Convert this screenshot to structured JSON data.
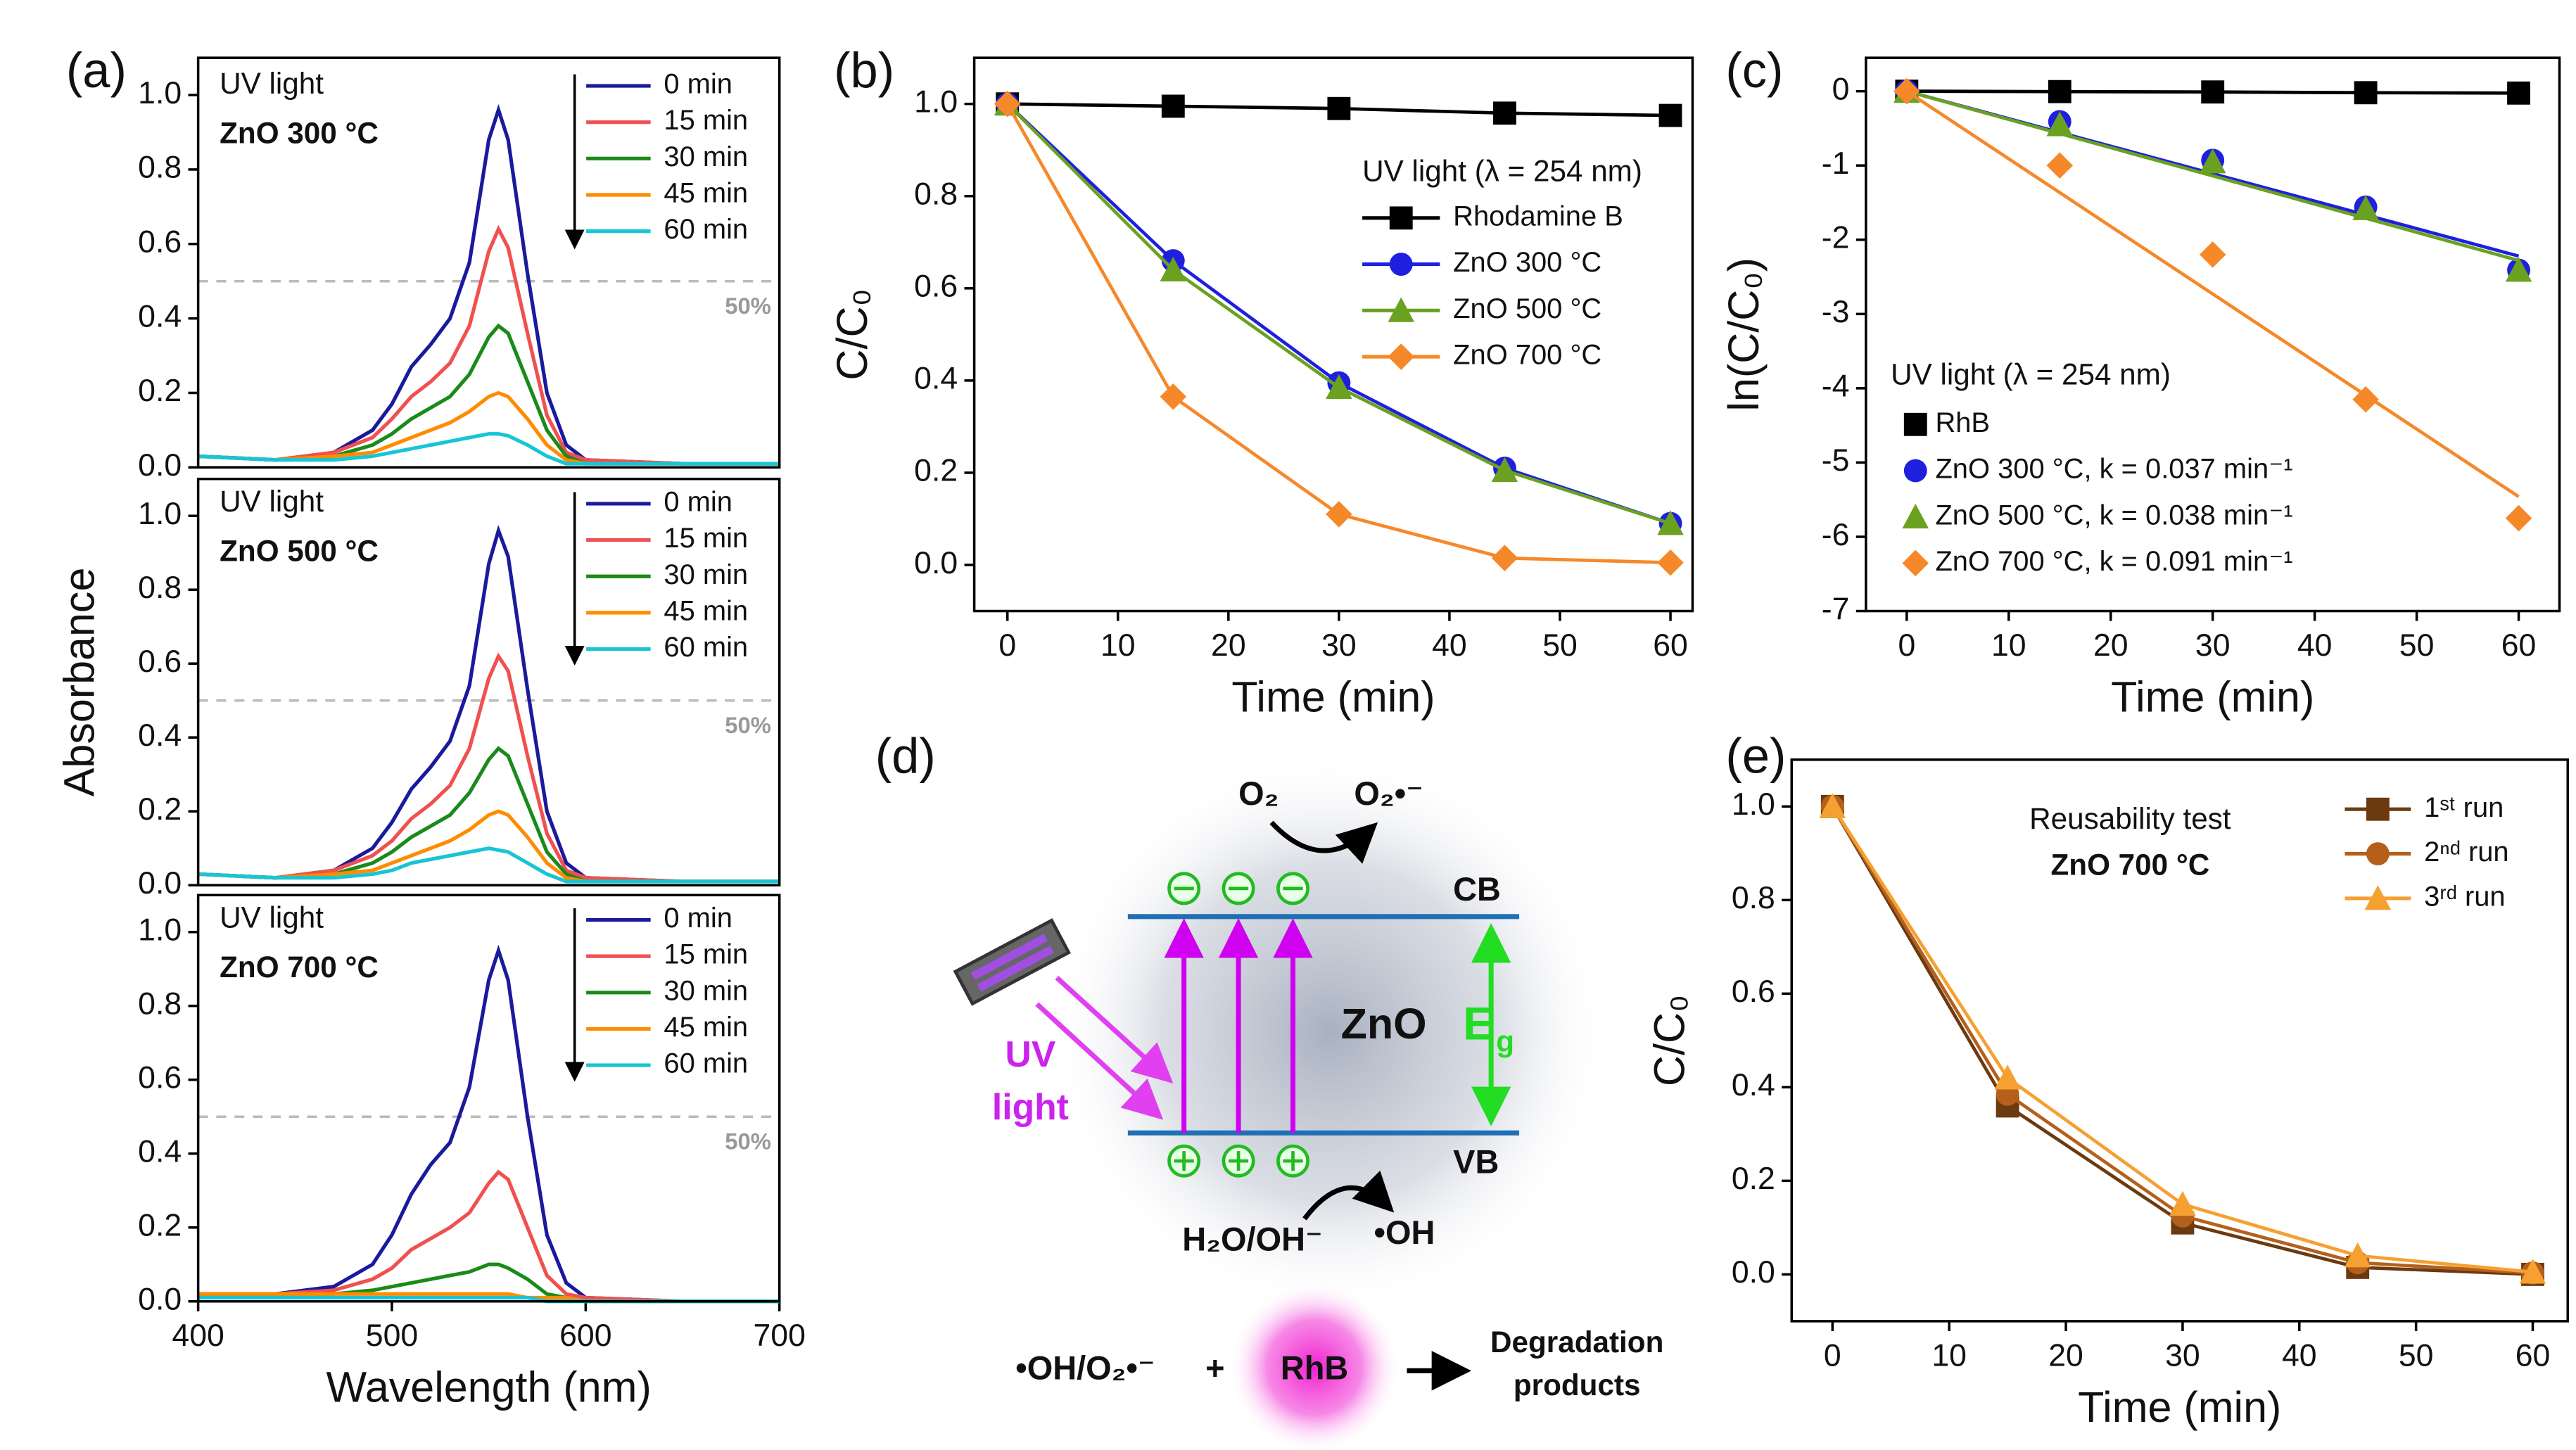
{
  "chart_data": [
    {
      "type": "line",
      "panel": "(a)",
      "annotations": [
        "UV light",
        "ZnO 300 °C"
      ],
      "x": [
        400,
        440,
        470,
        490,
        500,
        510,
        520,
        530,
        540,
        550,
        555,
        560,
        570,
        580,
        590,
        600,
        650,
        700
      ],
      "series": [
        {
          "name": "0 min",
          "color": "#1a1a9c",
          "values": [
            0.03,
            0.02,
            0.04,
            0.1,
            0.17,
            0.27,
            0.33,
            0.4,
            0.55,
            0.88,
            0.96,
            0.88,
            0.52,
            0.2,
            0.06,
            0.02,
            0.01,
            0.01
          ]
        },
        {
          "name": "15 min",
          "color": "#f0504f",
          "values": [
            0.03,
            0.02,
            0.04,
            0.08,
            0.13,
            0.19,
            0.23,
            0.28,
            0.38,
            0.58,
            0.64,
            0.59,
            0.36,
            0.14,
            0.04,
            0.02,
            0.01,
            0.01
          ]
        },
        {
          "name": "30 min",
          "color": "#1a8a1a",
          "values": [
            0.03,
            0.02,
            0.03,
            0.06,
            0.09,
            0.13,
            0.16,
            0.19,
            0.25,
            0.35,
            0.38,
            0.36,
            0.23,
            0.1,
            0.03,
            0.01,
            0.01,
            0.01
          ]
        },
        {
          "name": "45 min",
          "color": "#ff8c00",
          "values": [
            0.03,
            0.02,
            0.03,
            0.04,
            0.06,
            0.08,
            0.1,
            0.12,
            0.15,
            0.19,
            0.2,
            0.19,
            0.13,
            0.06,
            0.02,
            0.01,
            0.01,
            0.01
          ]
        },
        {
          "name": "60 min",
          "color": "#17c5d5",
          "values": [
            0.03,
            0.02,
            0.02,
            0.03,
            0.04,
            0.05,
            0.06,
            0.07,
            0.08,
            0.09,
            0.09,
            0.085,
            0.06,
            0.03,
            0.01,
            0.01,
            0.01,
            0.01
          ]
        }
      ],
      "reference_line": {
        "value": 0.5,
        "label": "50%"
      },
      "xlim": [
        400,
        700
      ],
      "ylim": [
        0,
        1.1
      ],
      "yticks": [
        {
          "value": 0,
          "label": "0.0"
        },
        0.2,
        0.4,
        0.6,
        0.8,
        {
          "value": 1,
          "label": "1.0"
        }
      ],
      "legend": "upper right"
    },
    {
      "type": "line",
      "annotations": [
        "UV light",
        "ZnO 500 °C"
      ],
      "ylabel": "Absorbance",
      "x": [
        400,
        440,
        470,
        490,
        500,
        510,
        520,
        530,
        540,
        550,
        555,
        560,
        570,
        580,
        590,
        600,
        650,
        700
      ],
      "series": [
        {
          "name": "0 min",
          "color": "#1a1a9c",
          "values": [
            0.03,
            0.02,
            0.04,
            0.1,
            0.17,
            0.26,
            0.32,
            0.39,
            0.54,
            0.87,
            0.96,
            0.89,
            0.53,
            0.2,
            0.06,
            0.02,
            0.01,
            0.01
          ]
        },
        {
          "name": "15 min",
          "color": "#f0504f",
          "values": [
            0.03,
            0.02,
            0.04,
            0.08,
            0.12,
            0.18,
            0.22,
            0.27,
            0.37,
            0.56,
            0.62,
            0.58,
            0.35,
            0.14,
            0.04,
            0.02,
            0.01,
            0.01
          ]
        },
        {
          "name": "30 min",
          "color": "#1a8a1a",
          "values": [
            0.03,
            0.02,
            0.03,
            0.06,
            0.09,
            0.13,
            0.16,
            0.19,
            0.25,
            0.34,
            0.37,
            0.35,
            0.22,
            0.09,
            0.03,
            0.01,
            0.01,
            0.01
          ]
        },
        {
          "name": "45 min",
          "color": "#ff8c00",
          "values": [
            0.03,
            0.02,
            0.03,
            0.04,
            0.06,
            0.08,
            0.1,
            0.12,
            0.15,
            0.19,
            0.2,
            0.19,
            0.13,
            0.06,
            0.02,
            0.01,
            0.01,
            0.01
          ]
        },
        {
          "name": "60 min",
          "color": "#17c5d5",
          "values": [
            0.03,
            0.02,
            0.02,
            0.03,
            0.04,
            0.06,
            0.07,
            0.08,
            0.09,
            0.1,
            0.095,
            0.09,
            0.06,
            0.03,
            0.01,
            0.01,
            0.01,
            0.01
          ]
        }
      ],
      "reference_line": {
        "value": 0.5,
        "label": "50%"
      },
      "xlim": [
        400,
        700
      ],
      "ylim": [
        0,
        1.1
      ],
      "yticks": [
        {
          "value": 0,
          "label": "0.0"
        },
        0.2,
        0.4,
        0.6,
        0.8,
        {
          "value": 1,
          "label": "1.0"
        }
      ],
      "legend": "upper right"
    },
    {
      "type": "line",
      "annotations": [
        "UV light",
        "ZnO 700 °C"
      ],
      "xlabel": "Wavelength (nm)",
      "x": [
        400,
        440,
        470,
        490,
        500,
        510,
        520,
        530,
        540,
        550,
        555,
        560,
        570,
        580,
        590,
        600,
        650,
        700
      ],
      "series": [
        {
          "name": "0 min",
          "color": "#1a1a9c",
          "values": [
            0.02,
            0.02,
            0.04,
            0.1,
            0.18,
            0.29,
            0.37,
            0.43,
            0.58,
            0.87,
            0.95,
            0.87,
            0.5,
            0.18,
            0.05,
            0.01,
            0,
            0
          ]
        },
        {
          "name": "15 min",
          "color": "#f0504f",
          "values": [
            0.02,
            0.02,
            0.03,
            0.06,
            0.09,
            0.14,
            0.17,
            0.2,
            0.24,
            0.32,
            0.35,
            0.33,
            0.2,
            0.07,
            0.02,
            0.01,
            0,
            0
          ]
        },
        {
          "name": "30 min",
          "color": "#1a8a1a",
          "values": [
            0.02,
            0.02,
            0.02,
            0.03,
            0.04,
            0.05,
            0.06,
            0.07,
            0.08,
            0.1,
            0.1,
            0.09,
            0.06,
            0.02,
            0.01,
            0,
            0,
            0
          ]
        },
        {
          "name": "45 min",
          "color": "#ff8c00",
          "values": [
            0.02,
            0.02,
            0.02,
            0.02,
            0.02,
            0.02,
            0.02,
            0.02,
            0.02,
            0.02,
            0.02,
            0.02,
            0.01,
            0.01,
            0.01,
            0,
            0,
            0
          ]
        },
        {
          "name": "60 min",
          "color": "#17c5d5",
          "values": [
            0.01,
            0.01,
            0.01,
            0.01,
            0.01,
            0.01,
            0.01,
            0.01,
            0.01,
            0.01,
            0.01,
            0.01,
            0.01,
            0,
            0,
            0,
            0,
            0
          ]
        }
      ],
      "reference_line": {
        "value": 0.5,
        "label": "50%"
      },
      "xlim": [
        400,
        700
      ],
      "ylim": [
        0,
        1.1
      ],
      "xticks": [
        400,
        500,
        600,
        700
      ],
      "yticks": [
        {
          "value": 0,
          "label": "0.0"
        },
        0.2,
        0.4,
        0.6,
        0.8,
        {
          "value": 1,
          "label": "1.0"
        }
      ],
      "legend": "upper right"
    },
    {
      "type": "line",
      "panel": "(b)",
      "xlabel": "Time (min)",
      "ylabel": "C/C₀",
      "legend_title": "UV light (λ = 254 nm)",
      "x": [
        0,
        15,
        30,
        45,
        60
      ],
      "series": [
        {
          "name": "Rhodamine B",
          "color": "#000000",
          "marker": "square",
          "values": [
            1.0,
            0.995,
            0.99,
            0.98,
            0.975
          ]
        },
        {
          "name": "ZnO 300 °C",
          "color": "#1f1fe0",
          "marker": "circle",
          "values": [
            1.0,
            0.66,
            0.395,
            0.21,
            0.09
          ]
        },
        {
          "name": "ZnO 500 °C",
          "color": "#6aa121",
          "marker": "triangle",
          "values": [
            1.0,
            0.64,
            0.385,
            0.205,
            0.09
          ]
        },
        {
          "name": "ZnO 700 °C",
          "color": "#f5892a",
          "marker": "diamond",
          "values": [
            1.0,
            0.365,
            0.11,
            0.015,
            0.005
          ]
        }
      ],
      "xlim": [
        -3,
        62
      ],
      "ylim": [
        -0.1,
        1.1
      ],
      "xticks": [
        0,
        10,
        20,
        30,
        40,
        50,
        60
      ],
      "yticks": [
        {
          "value": 0,
          "label": "0.0"
        },
        0.2,
        0.4,
        0.6,
        0.8,
        {
          "value": 1,
          "label": "1.0"
        }
      ],
      "legend": "right"
    },
    {
      "type": "scatter",
      "panel": "(c)",
      "xlabel": "Time (min)",
      "ylabel": "ln(C/C₀)",
      "legend_title": "UV light (λ = 254 nm)",
      "x": [
        0,
        15,
        30,
        45,
        60
      ],
      "series": [
        {
          "name": "RhB",
          "color": "#000000",
          "marker": "square",
          "values": [
            0,
            -0.005,
            -0.01,
            -0.02,
            -0.025
          ]
        },
        {
          "name": "ZnO 300 °C,  k = 0.037 min⁻¹",
          "color": "#1f1fe0",
          "marker": "circle",
          "k": 0.037,
          "values": [
            0,
            -0.41,
            -0.93,
            -1.56,
            -2.41
          ]
        },
        {
          "name": "ZnO 500 °C,  k = 0.038 min⁻¹",
          "color": "#6aa121",
          "marker": "triangle",
          "k": 0.038,
          "values": [
            0,
            -0.45,
            -0.95,
            -1.58,
            -2.41
          ]
        },
        {
          "name": "ZnO 700 °C,  k = 0.091 min⁻¹",
          "color": "#f5892a",
          "marker": "diamond",
          "k": 0.091,
          "values": [
            0,
            -1.0,
            -2.2,
            -4.15,
            -5.75
          ]
        }
      ],
      "xlim": [
        -4,
        64
      ],
      "ylim": [
        -7,
        0.45
      ],
      "xticks": [
        0,
        10,
        20,
        30,
        40,
        50,
        60
      ],
      "yticks": [
        -7,
        -6,
        -5,
        -4,
        -3,
        -2,
        -1,
        0
      ],
      "legend": "lower left"
    },
    {
      "type": "line",
      "panel": "(e)",
      "xlabel": "Time (min)",
      "ylabel": "C/C₀",
      "annotations": [
        "Reusability test",
        "ZnO 700 °C"
      ],
      "x": [
        0,
        15,
        30,
        45,
        60
      ],
      "series": [
        {
          "name": "1ˢᵗ run",
          "color": "#6b3a10",
          "marker": "square",
          "values": [
            1.0,
            0.36,
            0.11,
            0.015,
            0.0
          ]
        },
        {
          "name": "2ⁿᵈ run",
          "color": "#b5601a",
          "marker": "circle",
          "values": [
            1.0,
            0.385,
            0.125,
            0.025,
            0.003
          ]
        },
        {
          "name": "3ʳᵈ run",
          "color": "#f5a030",
          "marker": "triangle",
          "values": [
            1.0,
            0.42,
            0.15,
            0.04,
            0.005
          ]
        }
      ],
      "xlim": [
        -3.5,
        63
      ],
      "ylim": [
        -0.1,
        1.1
      ],
      "xticks": [
        0,
        10,
        20,
        30,
        40,
        50,
        60
      ],
      "yticks": [
        {
          "value": 0,
          "label": "0.0"
        },
        0.2,
        0.4,
        0.6,
        0.8,
        {
          "value": 1,
          "label": "1.0"
        }
      ],
      "legend": "upper right"
    }
  ],
  "diagram": {
    "panel": "(d)",
    "o2": "O₂",
    "superoxide": "O₂•⁻",
    "cb": "CB",
    "vb": "VB",
    "material": "ZnO",
    "eg_main": "E",
    "eg_sub": "g",
    "uv_light": [
      "UV",
      "light"
    ],
    "water": "H₂O/OH⁻",
    "hydroxyl": "•OH",
    "radicals": "•OH/O₂•⁻",
    "plus": "+",
    "rhb": "RhB",
    "products": [
      "Degradation",
      "products"
    ]
  }
}
